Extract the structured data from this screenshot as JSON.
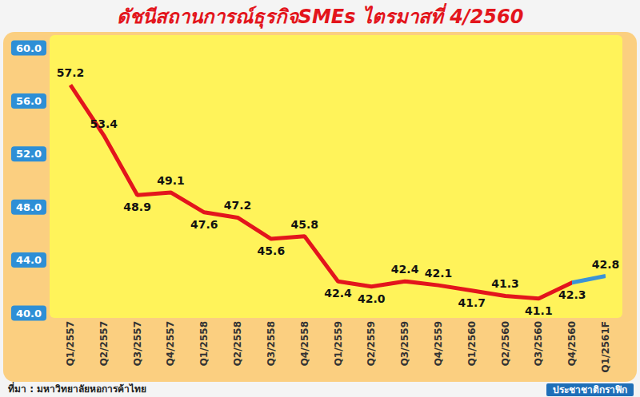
{
  "chart_data": {
    "type": "line",
    "title": "ดัชนีสถานการณ์ธุรกิจSMEs ไตรมาสที่ 4/2560",
    "categories": [
      "Q1/2557",
      "Q2/2557",
      "Q3/2557",
      "Q4/2557",
      "Q1/2558",
      "Q2/2558",
      "Q3/2558",
      "Q4/2558",
      "Q1/2559",
      "Q2/2559",
      "Q3/2559",
      "Q4/2559",
      "Q1/2560",
      "Q2/2560",
      "Q3/2560",
      "Q4/2560",
      "Q1/2561F"
    ],
    "values": [
      57.2,
      53.4,
      48.9,
      49.1,
      47.6,
      47.2,
      45.6,
      45.8,
      42.4,
      42.0,
      42.4,
      42.1,
      41.7,
      41.3,
      41.1,
      42.3,
      42.8
    ],
    "value_labels": [
      "57.2",
      "53.4",
      "48.9",
      "49.1",
      "47.6",
      "47.2",
      "45.6",
      "45.8",
      "42.4",
      "42.0",
      "42.4",
      "42.1",
      "41.7",
      "41.3",
      "41.1",
      "42.3",
      "42.8"
    ],
    "colors": [
      "#e3151c",
      "#e3151c",
      "#e3151c",
      "#e3151c",
      "#e3151c",
      "#e3151c",
      "#e3151c",
      "#e3151c",
      "#e3151c",
      "#e3151c",
      "#e3151c",
      "#e3151c",
      "#e3151c",
      "#e3151c",
      "#e3151c",
      "#e3151c",
      "#3b93d6"
    ],
    "ylim": [
      40,
      60
    ],
    "yticks": [
      {
        "value": 40,
        "label": "40.0"
      },
      {
        "value": 44,
        "label": "44.0"
      },
      {
        "value": 48,
        "label": "48.0"
      },
      {
        "value": 52,
        "label": "52.0"
      },
      {
        "value": 56,
        "label": "56.0"
      },
      {
        "value": 60,
        "label": "60.0"
      }
    ],
    "grid": false,
    "data_labels": true,
    "annotations": [
      "ที่มา : มหาวิทยาลัยหอการค้าไทย",
      "ประชาชาติกราฟิก"
    ]
  }
}
